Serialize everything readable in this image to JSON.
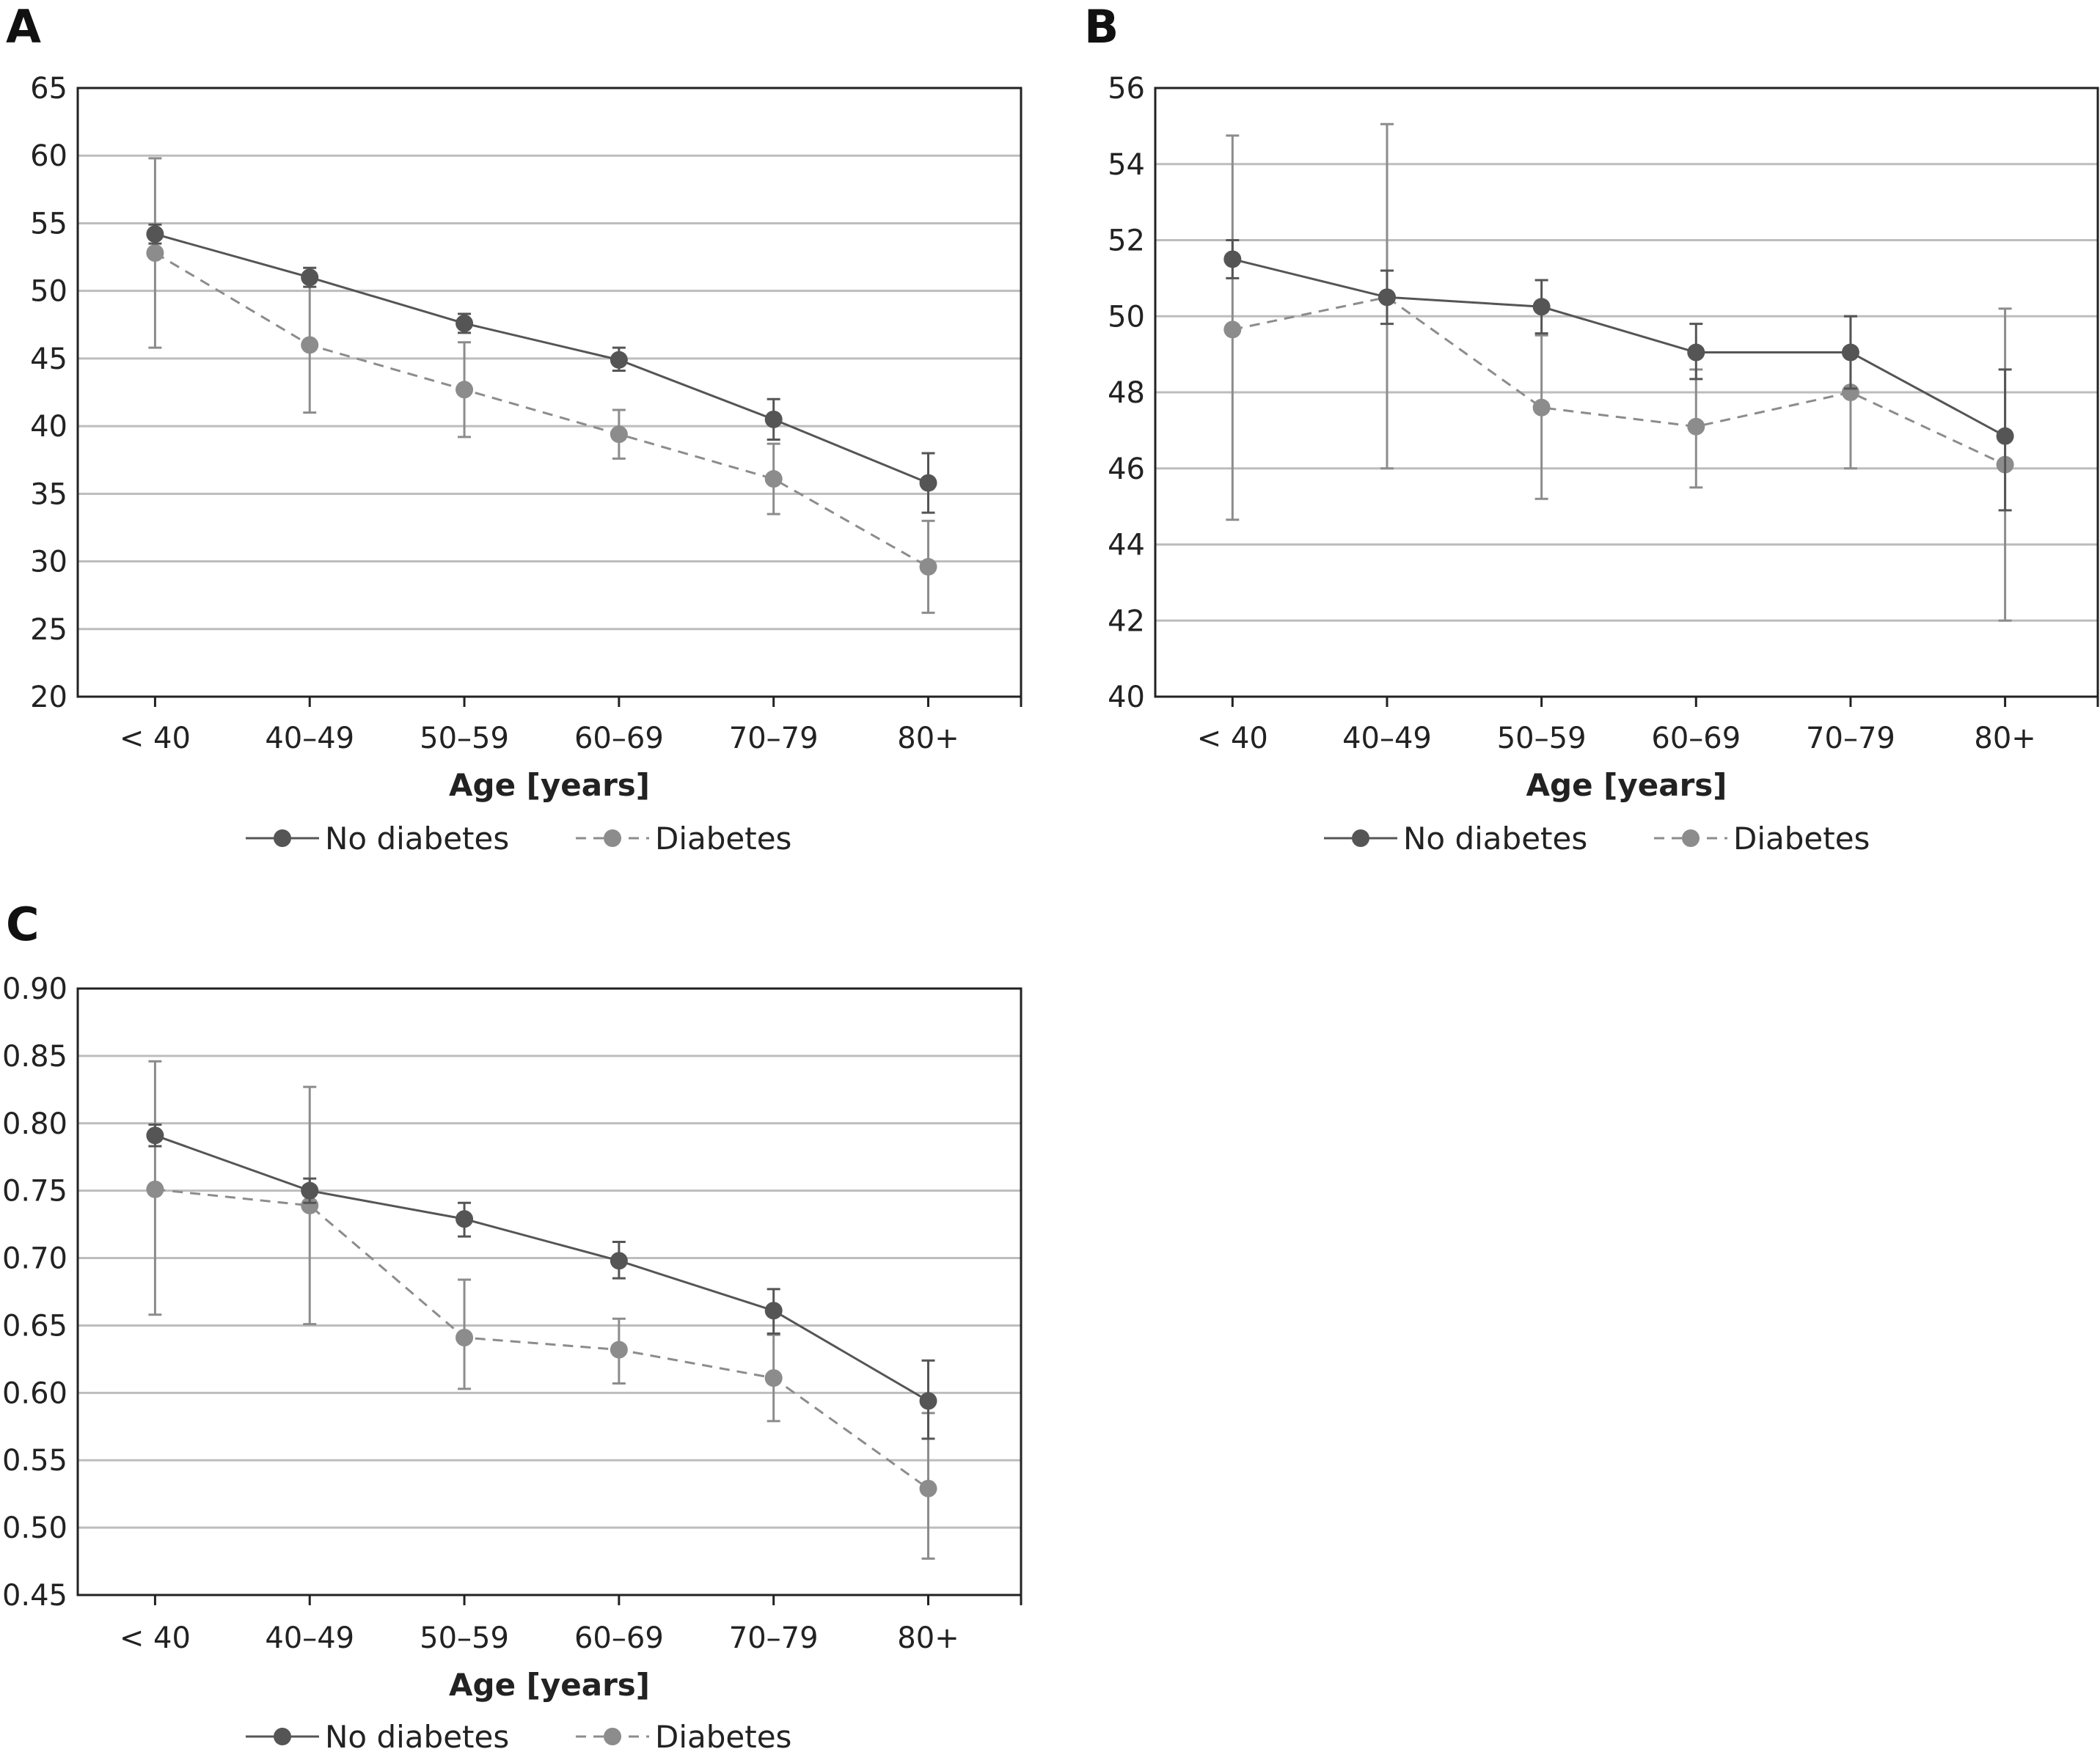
{
  "colors": {
    "no_diabetes": "#555555",
    "diabetes": "#8c8c8c",
    "grid": "#bdbdbd",
    "frame": "#222222"
  },
  "chart_data": [
    {
      "type": "line",
      "panel": "A",
      "title": "",
      "xlabel": "Age [years]",
      "ylabel": "",
      "categories": [
        "< 40",
        "40–49",
        "50–59",
        "60–69",
        "70–79",
        "80+"
      ],
      "ylim": [
        20,
        65
      ],
      "yticks": [
        "20",
        "25",
        "30",
        "35",
        "40",
        "45",
        "50",
        "55",
        "60",
        "65"
      ],
      "grid": true,
      "legend": "bottom",
      "series": [
        {
          "name": "No diabetes",
          "style": "solid",
          "values": [
            54.2,
            51.0,
            47.6,
            44.9,
            40.5,
            35.8
          ],
          "error_low": [
            53.5,
            50.3,
            46.9,
            44.1,
            39.0,
            33.6
          ],
          "error_high": [
            54.9,
            51.7,
            48.3,
            45.8,
            42.0,
            38.0
          ]
        },
        {
          "name": "Diabetes",
          "style": "dashed",
          "values": [
            52.8,
            46.0,
            42.7,
            39.4,
            36.1,
            29.6
          ],
          "error_low": [
            45.8,
            41.0,
            39.2,
            37.6,
            33.5,
            26.2
          ],
          "error_high": [
            59.8,
            51.0,
            46.2,
            41.2,
            38.7,
            33.0
          ]
        }
      ]
    },
    {
      "type": "line",
      "panel": "B",
      "title": "",
      "xlabel": "Age [years]",
      "ylabel": "",
      "categories": [
        "< 40",
        "40–49",
        "50–59",
        "60–69",
        "70–79",
        "80+"
      ],
      "ylim": [
        40,
        56
      ],
      "yticks": [
        "40",
        "42",
        "44",
        "46",
        "48",
        "50",
        "52",
        "54",
        "56"
      ],
      "grid": true,
      "legend": "bottom",
      "series": [
        {
          "name": "No diabetes",
          "style": "solid",
          "values": [
            51.5,
            50.5,
            50.25,
            49.05,
            49.05,
            46.85
          ],
          "error_low": [
            51.0,
            49.8,
            49.55,
            48.35,
            48.1,
            44.9
          ],
          "error_high": [
            52.0,
            51.2,
            50.95,
            49.8,
            50.0,
            48.6
          ]
        },
        {
          "name": "Diabetes",
          "style": "dashed",
          "values": [
            49.65,
            50.5,
            47.6,
            47.1,
            48.0,
            46.1
          ],
          "error_low": [
            44.65,
            46.0,
            45.2,
            45.5,
            46.0,
            42.0
          ],
          "error_high": [
            54.75,
            55.05,
            49.5,
            48.6,
            50.0,
            50.2
          ]
        }
      ]
    },
    {
      "type": "line",
      "panel": "C",
      "title": "",
      "xlabel": "Age [years]",
      "ylabel": "",
      "categories": [
        "< 40",
        "40–49",
        "50–59",
        "60–69",
        "70–79",
        "80+"
      ],
      "ylim": [
        0.45,
        0.9
      ],
      "yticks": [
        "0.45",
        "0.50",
        "0.55",
        "0.60",
        "0.65",
        "0.70",
        "0.75",
        "0.80",
        "0.85",
        "0.90"
      ],
      "grid": true,
      "legend": "bottom",
      "series": [
        {
          "name": "No diabetes",
          "style": "solid",
          "values": [
            0.791,
            0.75,
            0.729,
            0.698,
            0.661,
            0.594
          ],
          "error_low": [
            0.783,
            0.741,
            0.716,
            0.685,
            0.644,
            0.566
          ],
          "error_high": [
            0.799,
            0.759,
            0.741,
            0.712,
            0.677,
            0.624
          ]
        },
        {
          "name": "Diabetes",
          "style": "dashed",
          "values": [
            0.751,
            0.739,
            0.641,
            0.632,
            0.611,
            0.529
          ],
          "error_low": [
            0.658,
            0.651,
            0.603,
            0.607,
            0.579,
            0.477
          ],
          "error_high": [
            0.846,
            0.827,
            0.684,
            0.655,
            0.643,
            0.585
          ]
        }
      ]
    }
  ]
}
